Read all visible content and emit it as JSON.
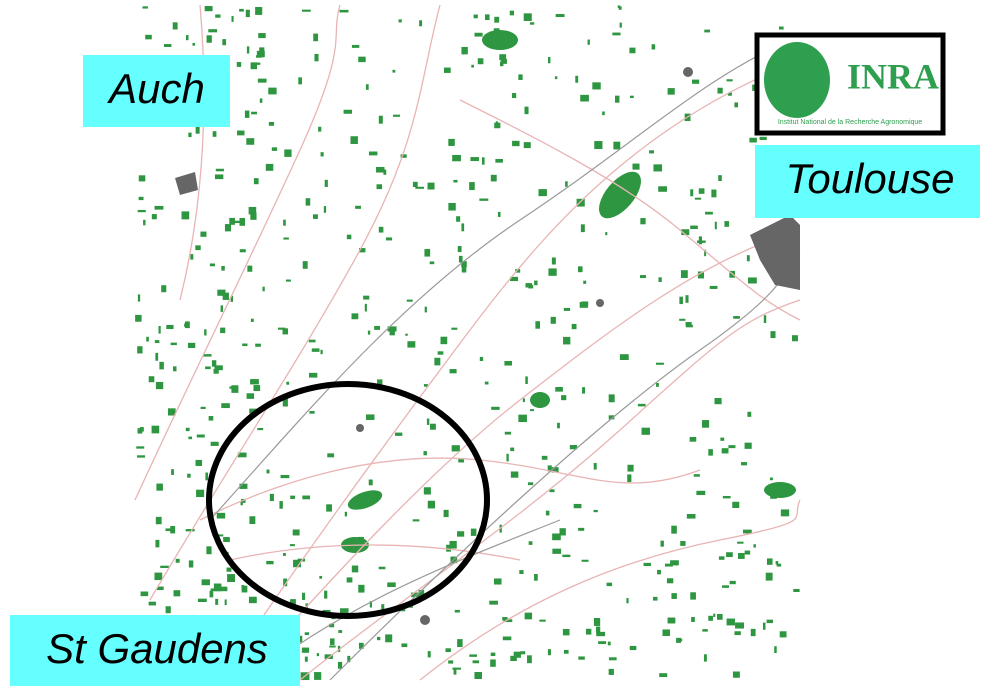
{
  "labels": {
    "auch": "Auch",
    "toulouse": "Toulouse",
    "st_gaudens": "St Gaudens"
  },
  "logo": {
    "name": "INRA",
    "subtitle": "Institut National de la Recherche Agronomique"
  }
}
